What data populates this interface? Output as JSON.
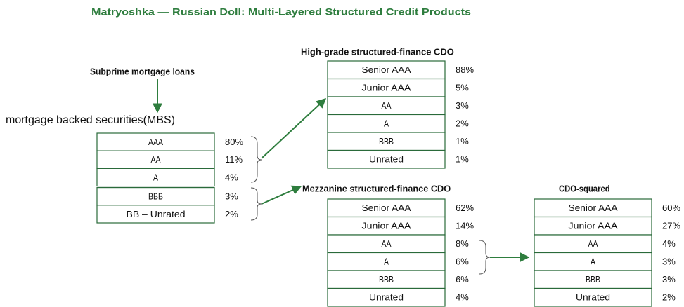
{
  "title": "Matryoshka — Russian Doll: Multi-Layered Structured Credit Products",
  "source_label": "Subprime mortgage loans",
  "tables": [
    {
      "title": "mortgage backed securities(MBS)",
      "rows": [
        [
          "AAA",
          "80%"
        ],
        [
          "AA",
          "11%"
        ],
        [
          "A",
          "4%"
        ],
        [
          "BBB",
          "3%"
        ],
        [
          "BB – Unrated",
          "2%"
        ]
      ]
    },
    {
      "title": "High-grade structured-finance CDO",
      "rows": [
        [
          "Senior AAA",
          "88%"
        ],
        [
          "Junior AAA",
          "5%"
        ],
        [
          "AA",
          "3%"
        ],
        [
          "A",
          "2%"
        ],
        [
          "BBB",
          "1%"
        ],
        [
          "Unrated",
          "1%"
        ]
      ]
    },
    {
      "title": "Mezzanine structured-finance CDO",
      "rows": [
        [
          "Senior AAA",
          "62%"
        ],
        [
          "Junior AAA",
          "14%"
        ],
        [
          "AA",
          "8%"
        ],
        [
          "A",
          "6%"
        ],
        [
          "BBB",
          "6%"
        ],
        [
          "Unrated",
          "4%"
        ]
      ]
    },
    {
      "title": "CDO-squared",
      "rows": [
        [
          "Senior AAA",
          "60%"
        ],
        [
          "Junior AAA",
          "27%"
        ],
        [
          "AA",
          "4%"
        ],
        [
          "A",
          "3%"
        ],
        [
          "BBB",
          "3%"
        ],
        [
          "Unrated",
          "2%"
        ]
      ]
    }
  ]
}
